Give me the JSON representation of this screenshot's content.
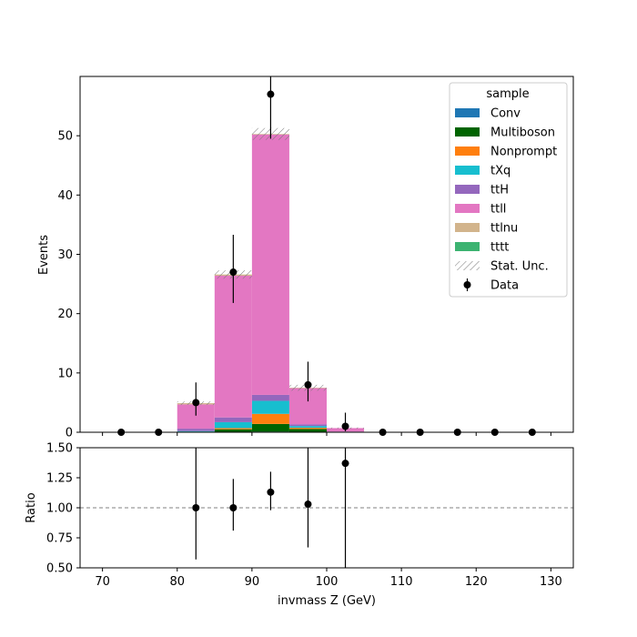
{
  "chart_data": [
    {
      "type": "bar",
      "stacked": true,
      "ylabel": "Events",
      "ylim": [
        0,
        60
      ],
      "yticks": [
        0,
        10,
        20,
        30,
        40,
        50
      ],
      "xlim": [
        67,
        133
      ],
      "bin_edges": [
        70,
        75,
        80,
        85,
        90,
        95,
        100,
        105,
        110,
        115,
        120,
        125,
        130
      ],
      "legend": {
        "title": "sample",
        "placement": "top-right",
        "entries": [
          {
            "label": "Conv",
            "color": "#1f77b4",
            "kind": "patch"
          },
          {
            "label": "Multiboson",
            "color": "#006400",
            "kind": "patch"
          },
          {
            "label": "Nonprompt",
            "color": "#ff7f0e",
            "kind": "patch"
          },
          {
            "label": "tXq",
            "color": "#17becf",
            "kind": "patch"
          },
          {
            "label": "ttH",
            "color": "#9467bd",
            "kind": "patch"
          },
          {
            "label": "ttll",
            "color": "#e377c2",
            "kind": "patch"
          },
          {
            "label": "ttlnu",
            "color": "#d2b48c",
            "kind": "patch"
          },
          {
            "label": "tttt",
            "color": "#3cb371",
            "kind": "patch"
          },
          {
            "label": "Stat. Unc.",
            "color": "#808080",
            "kind": "hatch"
          },
          {
            "label": "Data",
            "color": "#000000",
            "kind": "errorbar"
          }
        ]
      },
      "series": [
        {
          "name": "Conv",
          "color": "#1f77b4",
          "values": [
            0,
            0,
            0,
            0,
            0.1,
            0.05,
            0,
            0,
            0,
            0,
            0,
            0
          ]
        },
        {
          "name": "Multiboson",
          "color": "#006400",
          "values": [
            0,
            0,
            0.1,
            0.5,
            1.3,
            0.5,
            0,
            0,
            0,
            0,
            0,
            0
          ]
        },
        {
          "name": "Nonprompt",
          "color": "#ff7f0e",
          "values": [
            0,
            0,
            0,
            0.2,
            1.7,
            0.2,
            0,
            0,
            0,
            0,
            0,
            0
          ]
        },
        {
          "name": "tXq",
          "color": "#17becf",
          "values": [
            0,
            0,
            0.1,
            1.0,
            2.2,
            0.3,
            0.1,
            0,
            0,
            0,
            0,
            0
          ]
        },
        {
          "name": "ttH",
          "color": "#9467bd",
          "values": [
            0,
            0,
            0.4,
            0.8,
            1.0,
            0.3,
            0,
            0,
            0,
            0,
            0,
            0
          ]
        },
        {
          "name": "ttll",
          "color": "#e377c2",
          "values": [
            0,
            0,
            4.1,
            23.9,
            43.9,
            6.1,
            0.6,
            0,
            0,
            0,
            0,
            0
          ]
        },
        {
          "name": "ttlnu",
          "color": "#d2b48c",
          "values": [
            0,
            0,
            0.2,
            0.2,
            0.1,
            0.05,
            0,
            0,
            0,
            0,
            0,
            0
          ]
        },
        {
          "name": "tttt",
          "color": "#3cb371",
          "values": [
            0,
            0,
            0,
            0,
            0,
            0,
            0,
            0,
            0,
            0,
            0,
            0
          ]
        }
      ],
      "stat_unc": [
        0,
        0,
        0.3,
        0.7,
        1.0,
        0.5,
        0.1,
        0,
        0,
        0,
        0,
        0
      ],
      "data": {
        "name": "Data",
        "x": [
          72.5,
          77.5,
          82.5,
          87.5,
          92.5,
          97.5,
          102.5,
          107.5,
          112.5,
          117.5,
          122.5,
          127.5
        ],
        "y": [
          0,
          0,
          5,
          27,
          57,
          8,
          1,
          0,
          0,
          0,
          0,
          0
        ],
        "yerr_low": [
          0,
          0,
          2.2,
          5.2,
          7.5,
          2.8,
          0.83,
          0,
          0,
          0,
          0,
          0
        ],
        "yerr_high": [
          0,
          0,
          3.4,
          6.3,
          8.6,
          3.9,
          2.3,
          0,
          0,
          0,
          0,
          0
        ]
      }
    },
    {
      "type": "scatter",
      "ylabel": "Ratio",
      "xlabel": "invmass Z (GeV)",
      "ylim": [
        0.5,
        1.5
      ],
      "yticks": [
        "0.50",
        "0.75",
        "1.00",
        "1.25",
        "1.50"
      ],
      "xlim": [
        67,
        133
      ],
      "xticks": [
        "70",
        "80",
        "90",
        "100",
        "110",
        "120",
        "130"
      ],
      "reference_line": 1.0,
      "points": {
        "x": [
          82.5,
          87.5,
          92.5,
          97.5,
          102.5
        ],
        "y": [
          1.0,
          1.0,
          1.13,
          1.03,
          1.37
        ],
        "yerr_low": [
          0.43,
          0.19,
          0.15,
          0.36,
          1.37
        ],
        "yerr_high": [
          0.68,
          0.24,
          0.17,
          0.49,
          1.37
        ]
      }
    }
  ]
}
